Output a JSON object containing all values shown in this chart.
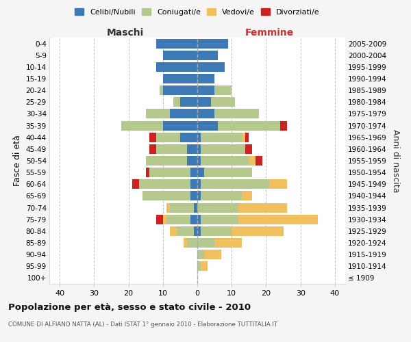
{
  "age_groups": [
    "100+",
    "95-99",
    "90-94",
    "85-89",
    "80-84",
    "75-79",
    "70-74",
    "65-69",
    "60-64",
    "55-59",
    "50-54",
    "45-49",
    "40-44",
    "35-39",
    "30-34",
    "25-29",
    "20-24",
    "15-19",
    "10-14",
    "5-9",
    "0-4"
  ],
  "birth_years": [
    "≤ 1909",
    "1910-1914",
    "1915-1919",
    "1920-1924",
    "1925-1929",
    "1930-1934",
    "1935-1939",
    "1940-1944",
    "1945-1949",
    "1950-1954",
    "1955-1959",
    "1960-1964",
    "1965-1969",
    "1970-1974",
    "1975-1979",
    "1980-1984",
    "1985-1989",
    "1990-1994",
    "1995-1999",
    "2000-2004",
    "2005-2009"
  ],
  "colors": {
    "celibi": "#3d7ab5",
    "coniugati": "#b5c98e",
    "vedovi": "#f0c060",
    "divorziati": "#cc2222"
  },
  "maschi": {
    "celibi": [
      0,
      0,
      0,
      0,
      1,
      2,
      1,
      2,
      2,
      2,
      3,
      3,
      5,
      10,
      8,
      5,
      10,
      10,
      12,
      10,
      12
    ],
    "coniugati": [
      0,
      0,
      0,
      3,
      5,
      7,
      7,
      14,
      15,
      12,
      12,
      9,
      7,
      12,
      7,
      2,
      1,
      0,
      0,
      0,
      0
    ],
    "vedovi": [
      0,
      0,
      0,
      1,
      2,
      1,
      1,
      0,
      0,
      0,
      0,
      0,
      0,
      0,
      0,
      0,
      0,
      0,
      0,
      0,
      0
    ],
    "divorziati": [
      0,
      0,
      0,
      0,
      0,
      2,
      0,
      0,
      2,
      1,
      0,
      2,
      2,
      0,
      0,
      0,
      0,
      0,
      0,
      0,
      0
    ]
  },
  "femmine": {
    "celibi": [
      0,
      0,
      0,
      0,
      1,
      1,
      0,
      1,
      1,
      2,
      1,
      1,
      1,
      6,
      5,
      4,
      5,
      5,
      8,
      6,
      9
    ],
    "coniugati": [
      0,
      1,
      2,
      5,
      9,
      11,
      12,
      12,
      20,
      14,
      14,
      13,
      12,
      18,
      13,
      7,
      5,
      0,
      0,
      0,
      0
    ],
    "vedovi": [
      0,
      2,
      5,
      8,
      15,
      23,
      14,
      3,
      5,
      0,
      2,
      0,
      1,
      0,
      0,
      0,
      0,
      0,
      0,
      0,
      0
    ],
    "divorziati": [
      0,
      0,
      0,
      0,
      0,
      0,
      0,
      0,
      0,
      0,
      2,
      2,
      1,
      2,
      0,
      0,
      0,
      0,
      0,
      0,
      0
    ]
  },
  "title": "Popolazione per età, sesso e stato civile - 2010",
  "subtitle": "COMUNE DI ALFIANO NATTA (AL) - Dati ISTAT 1° gennaio 2010 - Elaborazione TUTTITALIA.IT",
  "ylabel_left": "Fasce di età",
  "ylabel_right": "Anni di nascita",
  "xlabel_left": "Maschi",
  "xlabel_right": "Femmine",
  "xlim": 43,
  "background": "#f5f5f5",
  "plot_bg": "#ffffff"
}
